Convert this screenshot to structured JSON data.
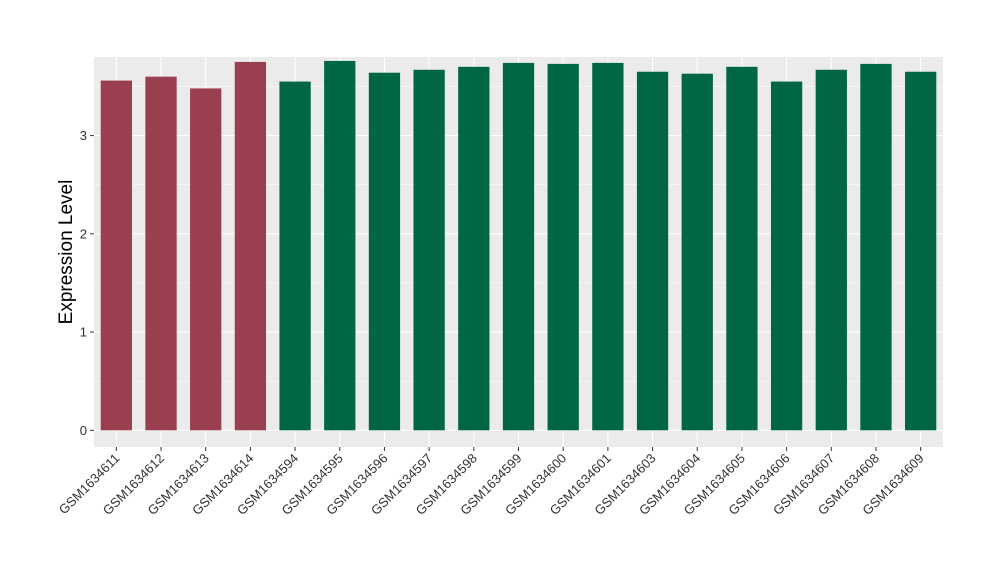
{
  "chart_data": {
    "type": "bar",
    "title": "",
    "xlabel": "",
    "ylabel": "Expression Level",
    "ylim": [
      -0.17,
      3.8
    ],
    "yticks": [
      0,
      1,
      2,
      3
    ],
    "grid": true,
    "legend": "none",
    "colors": {
      "group_a": "#9a3f4f",
      "group_b": "#006644",
      "panel_bg": "#ebebeb",
      "grid": "#ffffff"
    },
    "categories": [
      "GSM1634611",
      "GSM1634612",
      "GSM1634613",
      "GSM1634614",
      "GSM1634594",
      "GSM1634595",
      "GSM1634596",
      "GSM1634597",
      "GSM1634598",
      "GSM1634599",
      "GSM1634600",
      "GSM1634601",
      "GSM1634603",
      "GSM1634604",
      "GSM1634605",
      "GSM1634606",
      "GSM1634607",
      "GSM1634608",
      "GSM1634609"
    ],
    "values": [
      3.56,
      3.6,
      3.48,
      3.75,
      3.55,
      3.76,
      3.64,
      3.67,
      3.7,
      3.74,
      3.73,
      3.74,
      3.65,
      3.63,
      3.7,
      3.55,
      3.67,
      3.73,
      3.65
    ],
    "groups": [
      "a",
      "a",
      "a",
      "a",
      "b",
      "b",
      "b",
      "b",
      "b",
      "b",
      "b",
      "b",
      "b",
      "b",
      "b",
      "b",
      "b",
      "b",
      "b"
    ]
  }
}
